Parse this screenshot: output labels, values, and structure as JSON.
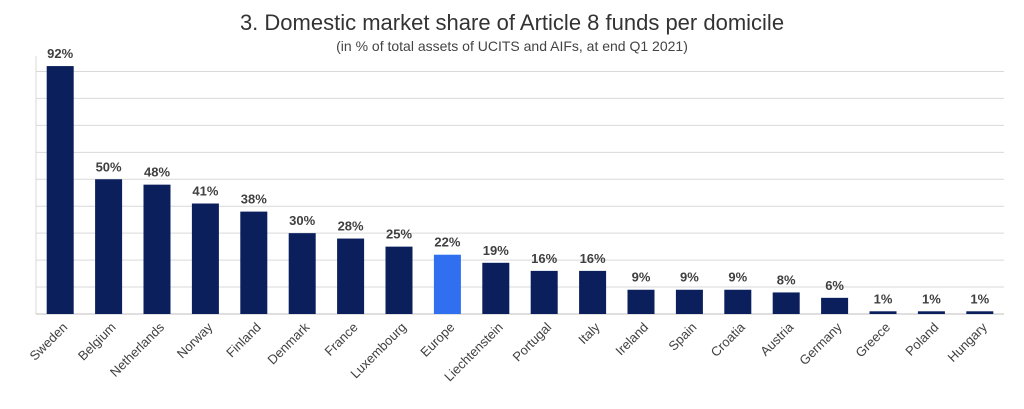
{
  "chart_data": {
    "type": "bar",
    "title": "3. Domestic market share of Article 8 funds per domicile",
    "subtitle": "(in % of total assets of UCITS and AIFs, at end Q1 2021)",
    "categories": [
      "Sweden",
      "Belgium",
      "Netherlands",
      "Norway",
      "Finland",
      "Denmark",
      "France",
      "Luxembourg",
      "Europe",
      "Liechtenstein",
      "Portugal",
      "Italy",
      "Ireland",
      "Spain",
      "Croatia",
      "Austria",
      "Germany",
      "Greece",
      "Poland",
      "Hungary"
    ],
    "values": [
      92,
      50,
      48,
      41,
      38,
      30,
      28,
      25,
      22,
      19,
      16,
      16,
      9,
      9,
      9,
      8,
      6,
      1,
      1,
      1
    ],
    "data_labels": [
      "92%",
      "50%",
      "48%",
      "41%",
      "38%",
      "30%",
      "28%",
      "25%",
      "22%",
      "19%",
      "16%",
      "16%",
      "9%",
      "9%",
      "9%",
      "8%",
      "6%",
      "1%",
      "1%",
      "1%"
    ],
    "highlight_category": "Europe",
    "ylim": [
      0,
      95
    ],
    "grid": true,
    "colors": {
      "bar": "#0a1f5c",
      "highlight": "#2f6ff0",
      "grid": "#d9d9d9"
    }
  }
}
